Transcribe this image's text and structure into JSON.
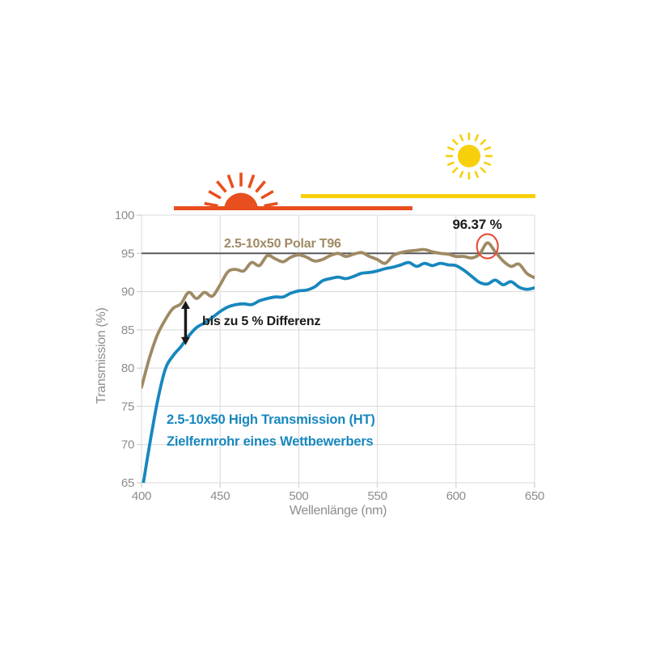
{
  "colors": {
    "brown": "#9f8a64",
    "blue": "#1787be",
    "orange": "#e84e1e",
    "yellow": "#f8cf0b",
    "grid": "#d9d9d9",
    "axis_text": "#8d8d8d",
    "ref_line": "#58585a",
    "annotation_red": "#e8432e",
    "black": "#1a1a1a"
  },
  "chart_data": {
    "type": "line",
    "xlabel": "Wellenlänge (nm)",
    "ylabel": "Transmission (%)",
    "xlim": [
      400,
      650
    ],
    "ylim": [
      65,
      100
    ],
    "x_ticks": [
      400,
      450,
      500,
      550,
      600,
      650
    ],
    "y_ticks": [
      65,
      70,
      75,
      80,
      85,
      90,
      95,
      100
    ],
    "grid": true,
    "reference_line_y": 95,
    "x": [
      400,
      405,
      410,
      415,
      420,
      425,
      430,
      435,
      440,
      445,
      450,
      455,
      460,
      465,
      470,
      475,
      480,
      485,
      490,
      495,
      500,
      505,
      510,
      515,
      520,
      525,
      530,
      535,
      540,
      545,
      550,
      555,
      560,
      565,
      570,
      575,
      580,
      585,
      590,
      595,
      600,
      605,
      610,
      615,
      620,
      625,
      630,
      635,
      640,
      645,
      650
    ],
    "series": [
      {
        "name": "2.5-10x50 Polar T96",
        "color_key": "brown",
        "values": [
          77.5,
          81.3,
          84.3,
          86.3,
          87.8,
          88.4,
          89.9,
          89.1,
          89.9,
          89.4,
          90.9,
          92.6,
          92.9,
          92.7,
          93.8,
          93.4,
          94.7,
          94.3,
          93.9,
          94.5,
          94.8,
          94.5,
          94.0,
          94.2,
          94.7,
          95.0,
          94.6,
          94.9,
          95.1,
          94.6,
          94.2,
          93.7,
          94.7,
          95.1,
          95.3,
          95.4,
          95.5,
          95.2,
          95.0,
          94.9,
          94.6,
          94.6,
          94.4,
          94.9,
          96.37,
          95.2,
          94.0,
          93.3,
          93.6,
          92.4,
          91.8
        ]
      },
      {
        "name": "2.5-10x50 High Transmission (HT) Zielfernrohr eines Wettbewerbers",
        "color_key": "blue",
        "values": [
          63.5,
          69.8,
          75.5,
          79.8,
          81.6,
          82.8,
          84.2,
          85.3,
          85.9,
          86.6,
          87.4,
          88.0,
          88.3,
          88.4,
          88.3,
          88.8,
          89.1,
          89.3,
          89.3,
          89.8,
          90.1,
          90.2,
          90.6,
          91.4,
          91.7,
          91.9,
          91.7,
          92.0,
          92.4,
          92.5,
          92.7,
          93.0,
          93.2,
          93.5,
          93.8,
          93.3,
          93.7,
          93.4,
          93.7,
          93.5,
          93.4,
          92.8,
          92.0,
          91.2,
          91.0,
          91.5,
          90.9,
          91.3,
          90.6,
          90.3,
          90.5
        ]
      }
    ],
    "annotations": {
      "peak_label": "96.37 %",
      "peak": {
        "x": 620,
        "y": 96.37
      },
      "difference_label": "bis zu 5 % Differenz",
      "difference_arrow": {
        "x": 428,
        "from": 83.0,
        "to": 88.8
      },
      "series1_label": "2.5-10x50 Polar T96",
      "series2_label_line1": "2.5-10x50 High Transmission (HT)",
      "series2_label_line2": "Zielfernrohr eines Wettbewerbers"
    }
  },
  "decorations": {
    "sunrise_icon": "orange-rising-sun-with-rays",
    "sun_icon": "yellow-sun-with-rays"
  }
}
